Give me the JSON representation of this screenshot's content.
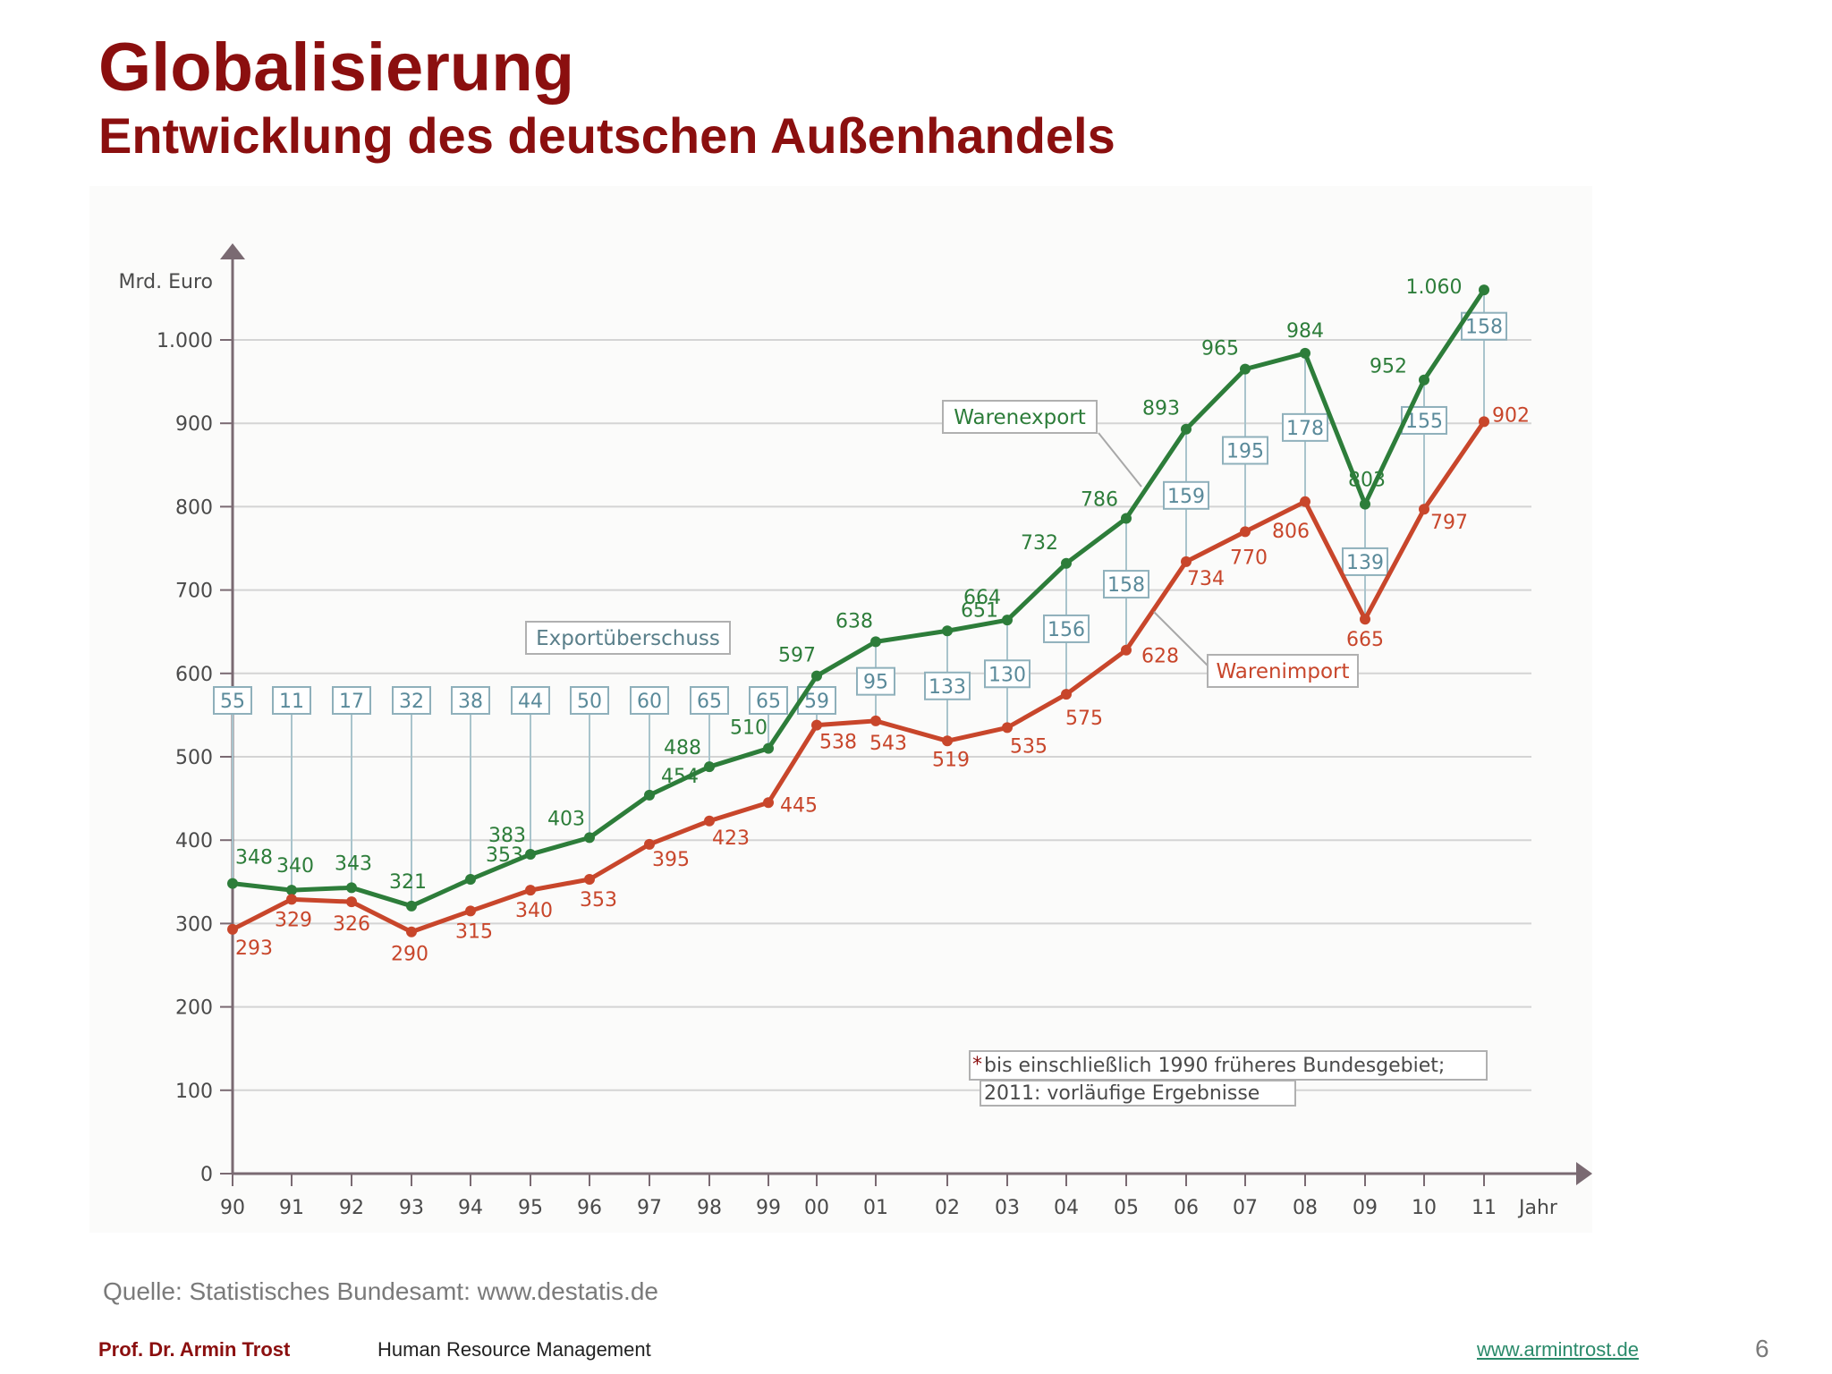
{
  "slide": {
    "title": "Globalisierung",
    "subtitle": "Entwicklung des deutschen Außenhandels",
    "source": "Quelle: Statistisches Bundesamt: www.destatis.de",
    "author": "Prof. Dr. Armin Trost",
    "course": "Human Resource Management",
    "website": "www.armintrost.de",
    "page_number": "6"
  },
  "colors": {
    "title": "#8b0f0f",
    "export": "#2d7d3a",
    "import": "#c8462b",
    "surplus_box": "#5a8a9a",
    "axis": "#7a6a72",
    "grid": "#d4d4d4",
    "text": "#4a4a4a"
  },
  "chart_data": {
    "type": "line",
    "ylabel": "Mrd. Euro",
    "xlabel": "Jahr",
    "ylim": [
      0,
      1000
    ],
    "yticks": [
      0,
      100,
      200,
      300,
      400,
      500,
      600,
      700,
      800,
      900,
      1000
    ],
    "ytick_labels": [
      "0",
      "100",
      "200",
      "300",
      "400",
      "500",
      "600",
      "700",
      "800",
      "900",
      "1.000"
    ],
    "categories": [
      "90",
      "91",
      "92",
      "93",
      "94",
      "95",
      "96",
      "97",
      "98",
      "99",
      "00",
      "01",
      "02",
      "03",
      "04",
      "05",
      "06",
      "07",
      "08",
      "09",
      "10",
      "11"
    ],
    "grid": "horizontal",
    "series": [
      {
        "name": "Warenexport",
        "values": [
          348,
          340,
          343,
          321,
          353,
          383,
          403,
          454,
          488,
          510,
          597,
          638,
          651,
          664,
          732,
          786,
          893,
          965,
          984,
          803,
          952,
          1060
        ],
        "value_labels": [
          "348",
          "340",
          "343",
          "321",
          "353",
          "383",
          "403",
          "454",
          "488",
          "510",
          "597",
          "638",
          "651",
          "664",
          "732",
          "786",
          "893",
          "965",
          "984",
          "803",
          "952",
          "1.060"
        ]
      },
      {
        "name": "Warenimport",
        "values": [
          293,
          329,
          326,
          290,
          315,
          340,
          353,
          395,
          423,
          445,
          538,
          543,
          519,
          535,
          575,
          628,
          734,
          770,
          806,
          665,
          797,
          902
        ],
        "value_labels": [
          "293",
          "329",
          "326",
          "290",
          "315",
          "340",
          "353",
          "395",
          "423",
          "445",
          "538",
          "543",
          "519",
          "535",
          "575",
          "628",
          "734",
          "770",
          "806",
          "665",
          "797",
          "902"
        ]
      },
      {
        "name": "Exportüberschuss",
        "values": [
          55,
          11,
          17,
          32,
          38,
          44,
          50,
          60,
          65,
          65,
          59,
          95,
          133,
          130,
          156,
          158,
          159,
          195,
          178,
          139,
          155,
          158
        ]
      }
    ],
    "footnote_marker": "*",
    "footnote_line1": "bis einschließlich 1990 früheres Bundesgebiet;",
    "footnote_line2": "2011: vorläufige Ergebnisse"
  }
}
